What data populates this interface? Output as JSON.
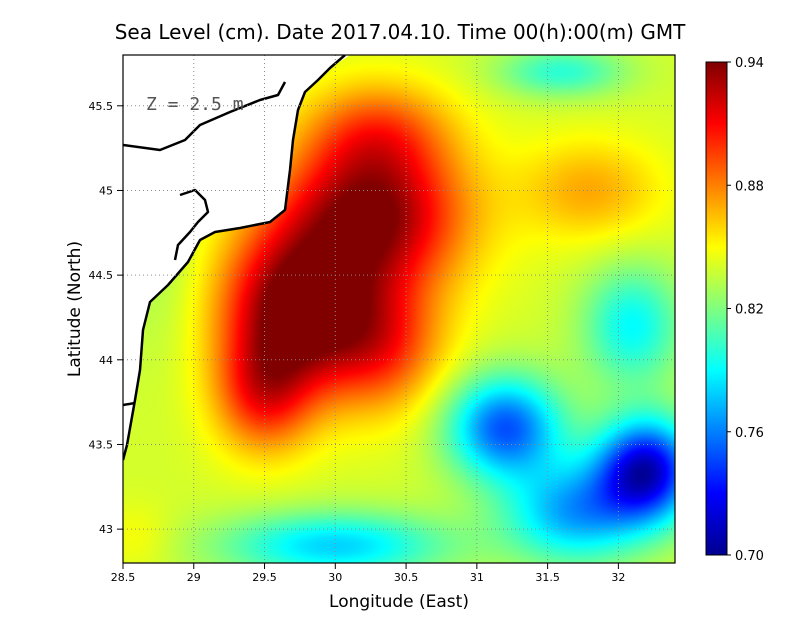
{
  "chart_data": {
    "type": "heatmap",
    "title": "Sea Level (cm). Date 2017.04.10. Time 00(h):00(m) GMT",
    "xlabel": "Longitude (East)",
    "ylabel": "Latitude (North)",
    "xlim": [
      28.5,
      32.4
    ],
    "ylim": [
      42.8,
      45.8
    ],
    "x_ticks": [
      28.5,
      29,
      29.5,
      30,
      30.5,
      31,
      31.5,
      32
    ],
    "x_tick_labels": [
      "28.5",
      "29",
      "29.5",
      "30",
      "30.5",
      "31",
      "31.5",
      "32"
    ],
    "y_ticks": [
      43,
      43.5,
      44,
      44.5,
      45,
      45.5
    ],
    "y_tick_labels": [
      "43",
      "43.5",
      "44",
      "44.5",
      "45",
      "45.5"
    ],
    "grid": true,
    "annotation": "Z = 2.5 m",
    "colorbar": {
      "min": 0.7,
      "max": 0.94,
      "ticks": [
        0.94,
        0.88,
        0.82,
        0.76,
        0.7
      ],
      "tick_labels": [
        "0.94",
        "0.88",
        "0.82",
        "0.76",
        "0.70"
      ],
      "colormap": "jet"
    },
    "field": {
      "background": 0.84,
      "features": [
        {
          "lon": 30.25,
          "lat": 44.85,
          "value": 0.94,
          "rx": 0.65,
          "ry": 0.45
        },
        {
          "lon": 29.7,
          "lat": 44.3,
          "value": 0.94,
          "rx": 0.5,
          "ry": 0.45
        },
        {
          "lon": 29.5,
          "lat": 43.8,
          "value": 0.9,
          "rx": 0.35,
          "ry": 0.35
        },
        {
          "lon": 30.3,
          "lat": 44.1,
          "value": 0.9,
          "rx": 0.45,
          "ry": 0.4
        },
        {
          "lon": 30.3,
          "lat": 45.35,
          "value": 0.88,
          "rx": 0.5,
          "ry": 0.3
        },
        {
          "lon": 31.8,
          "lat": 45.0,
          "value": 0.87,
          "rx": 0.5,
          "ry": 0.3
        },
        {
          "lon": 31.2,
          "lat": 43.6,
          "value": 0.75,
          "rx": 0.4,
          "ry": 0.3
        },
        {
          "lon": 32.2,
          "lat": 43.35,
          "value": 0.72,
          "rx": 0.35,
          "ry": 0.3
        },
        {
          "lon": 31.7,
          "lat": 43.1,
          "value": 0.77,
          "rx": 0.5,
          "ry": 0.3
        },
        {
          "lon": 30.0,
          "lat": 42.9,
          "value": 0.78,
          "rx": 0.8,
          "ry": 0.2
        },
        {
          "lon": 31.6,
          "lat": 45.7,
          "value": 0.8,
          "rx": 0.45,
          "ry": 0.15
        },
        {
          "lon": 32.1,
          "lat": 44.2,
          "value": 0.79,
          "rx": 0.35,
          "ry": 0.35
        },
        {
          "lon": 28.75,
          "lat": 44.6,
          "value": 0.83,
          "rx": 0.3,
          "ry": 0.6
        },
        {
          "lon": 28.6,
          "lat": 42.95,
          "value": 0.85,
          "rx": 0.25,
          "ry": 0.2
        }
      ]
    }
  }
}
